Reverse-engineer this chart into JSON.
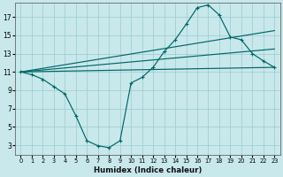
{
  "xlabel": "Humidex (Indice chaleur)",
  "background_color": "#c8e8ec",
  "grid_color": "#99cccc",
  "line_color": "#006666",
  "x_ticks": [
    0,
    1,
    2,
    3,
    4,
    5,
    6,
    7,
    8,
    9,
    10,
    11,
    12,
    13,
    14,
    15,
    16,
    17,
    18,
    19,
    20,
    21,
    22,
    23
  ],
  "y_ticks": [
    3,
    5,
    7,
    9,
    11,
    13,
    15,
    17
  ],
  "xlim": [
    -0.5,
    23.5
  ],
  "ylim": [
    2.0,
    18.5
  ],
  "curve": {
    "x": [
      0,
      1,
      2,
      3,
      4,
      5,
      6,
      7,
      8,
      9,
      10,
      11,
      12,
      13,
      14,
      15,
      16,
      17,
      18,
      19,
      20,
      21,
      22,
      23
    ],
    "y": [
      11.0,
      10.7,
      10.2,
      9.4,
      8.6,
      6.2,
      3.5,
      2.95,
      2.75,
      3.5,
      9.8,
      10.4,
      11.5,
      13.2,
      14.5,
      16.2,
      18.0,
      18.3,
      17.2,
      14.8,
      14.5,
      13.0,
      12.2,
      11.5
    ]
  },
  "straight_lines": [
    {
      "x0": 0,
      "y0": 11.0,
      "x1": 23,
      "y1": 11.5
    },
    {
      "x0": 0,
      "y0": 11.0,
      "x1": 23,
      "y1": 13.5
    },
    {
      "x0": 0,
      "y0": 11.0,
      "x1": 23,
      "y1": 15.5
    }
  ]
}
